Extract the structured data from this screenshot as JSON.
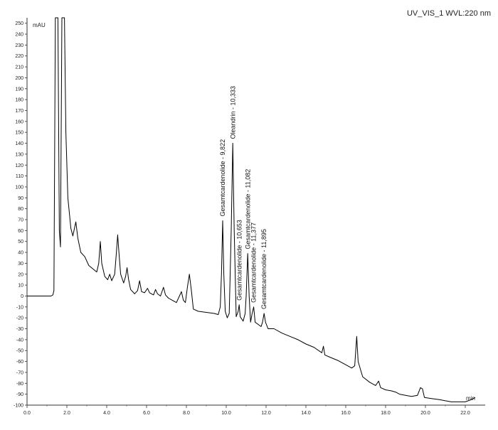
{
  "chart_data": {
    "type": "line",
    "title": "UV_VIS_1 WVL:220 nm",
    "ylabel": "mAU",
    "xlabel": "min",
    "xlim": [
      0,
      23
    ],
    "ylim": [
      -100,
      255
    ],
    "x_ticks": [
      "0.0",
      "2.0",
      "4.0",
      "6.0",
      "8.0",
      "10.0",
      "12.0",
      "14.0",
      "16.0",
      "18.0",
      "20.0",
      "22.0"
    ],
    "x_tick_values": [
      0,
      2,
      4,
      6,
      8,
      10,
      12,
      14,
      16,
      18,
      20,
      22
    ],
    "y_ticks": [
      250,
      240,
      230,
      220,
      210,
      200,
      190,
      180,
      170,
      160,
      150,
      140,
      130,
      120,
      110,
      100,
      90,
      80,
      70,
      60,
      50,
      40,
      30,
      20,
      10,
      0,
      -10,
      -20,
      -30,
      -40,
      -50,
      -60,
      -70,
      -80,
      -90,
      -100
    ],
    "series": [
      {
        "points": [
          [
            0.0,
            0
          ],
          [
            1.2,
            0
          ],
          [
            1.3,
            1
          ],
          [
            1.35,
            5
          ],
          [
            1.42,
            255
          ],
          [
            1.55,
            255
          ],
          [
            1.62,
            60
          ],
          [
            1.68,
            45
          ],
          [
            1.75,
            255
          ],
          [
            1.88,
            255
          ],
          [
            1.95,
            150
          ],
          [
            2.05,
            90
          ],
          [
            2.2,
            62
          ],
          [
            2.3,
            55
          ],
          [
            2.45,
            68
          ],
          [
            2.55,
            53
          ],
          [
            2.7,
            40
          ],
          [
            2.9,
            36
          ],
          [
            3.1,
            28
          ],
          [
            3.3,
            25
          ],
          [
            3.5,
            22
          ],
          [
            3.6,
            30
          ],
          [
            3.68,
            50
          ],
          [
            3.75,
            30
          ],
          [
            3.9,
            18
          ],
          [
            4.05,
            15
          ],
          [
            4.15,
            20
          ],
          [
            4.25,
            14
          ],
          [
            4.4,
            20
          ],
          [
            4.48,
            38
          ],
          [
            4.55,
            56
          ],
          [
            4.62,
            38
          ],
          [
            4.7,
            20
          ],
          [
            4.85,
            12
          ],
          [
            4.95,
            18
          ],
          [
            5.02,
            26
          ],
          [
            5.1,
            15
          ],
          [
            5.2,
            6
          ],
          [
            5.4,
            2
          ],
          [
            5.55,
            5
          ],
          [
            5.65,
            14
          ],
          [
            5.75,
            4
          ],
          [
            5.9,
            3
          ],
          [
            6.05,
            7
          ],
          [
            6.15,
            3
          ],
          [
            6.35,
            1
          ],
          [
            6.45,
            6
          ],
          [
            6.55,
            2
          ],
          [
            6.7,
            0
          ],
          [
            6.85,
            8
          ],
          [
            6.95,
            1
          ],
          [
            7.1,
            -2
          ],
          [
            7.3,
            -4
          ],
          [
            7.5,
            -6
          ],
          [
            7.65,
            0
          ],
          [
            7.75,
            4
          ],
          [
            7.85,
            -4
          ],
          [
            7.95,
            -6
          ],
          [
            8.05,
            8
          ],
          [
            8.15,
            20
          ],
          [
            8.25,
            5
          ],
          [
            8.35,
            -12
          ],
          [
            8.6,
            -14
          ],
          [
            9.0,
            -15
          ],
          [
            9.4,
            -16
          ],
          [
            9.6,
            -17
          ],
          [
            9.7,
            -10
          ],
          [
            9.76,
            20
          ],
          [
            9.82,
            69
          ],
          [
            9.88,
            20
          ],
          [
            9.95,
            -14
          ],
          [
            10.05,
            -20
          ],
          [
            10.15,
            -16
          ],
          [
            10.25,
            60
          ],
          [
            10.33,
            140
          ],
          [
            10.4,
            60
          ],
          [
            10.5,
            -19
          ],
          [
            10.6,
            -14
          ],
          [
            10.65,
            -8
          ],
          [
            10.7,
            -19
          ],
          [
            10.85,
            -23
          ],
          [
            10.95,
            -16
          ],
          [
            11.0,
            0
          ],
          [
            11.08,
            39
          ],
          [
            11.15,
            0
          ],
          [
            11.22,
            -24
          ],
          [
            11.3,
            -16
          ],
          [
            11.38,
            -10
          ],
          [
            11.45,
            -24
          ],
          [
            11.6,
            -26
          ],
          [
            11.75,
            -28
          ],
          [
            11.82,
            -24
          ],
          [
            11.9,
            -16
          ],
          [
            11.97,
            -24
          ],
          [
            12.1,
            -30
          ],
          [
            12.4,
            -30
          ],
          [
            12.8,
            -34
          ],
          [
            13.2,
            -37
          ],
          [
            13.6,
            -40
          ],
          [
            14.0,
            -44
          ],
          [
            14.4,
            -47
          ],
          [
            14.8,
            -52
          ],
          [
            14.88,
            -46
          ],
          [
            14.95,
            -54
          ],
          [
            15.2,
            -56
          ],
          [
            15.6,
            -59
          ],
          [
            16.0,
            -63
          ],
          [
            16.3,
            -66
          ],
          [
            16.45,
            -64
          ],
          [
            16.55,
            -37
          ],
          [
            16.62,
            -60
          ],
          [
            16.75,
            -68
          ],
          [
            16.85,
            -74
          ],
          [
            17.2,
            -79
          ],
          [
            17.5,
            -82
          ],
          [
            17.65,
            -78
          ],
          [
            17.75,
            -84
          ],
          [
            18.0,
            -86
          ],
          [
            18.3,
            -87
          ],
          [
            18.5,
            -88
          ],
          [
            18.7,
            -90
          ],
          [
            19.0,
            -91
          ],
          [
            19.3,
            -92
          ],
          [
            19.6,
            -91
          ],
          [
            19.75,
            -84
          ],
          [
            19.85,
            -85
          ],
          [
            19.95,
            -93
          ],
          [
            20.3,
            -94
          ],
          [
            20.7,
            -95
          ],
          [
            21.0,
            -96
          ],
          [
            21.3,
            -97
          ],
          [
            21.6,
            -97
          ],
          [
            22.0,
            -97
          ],
          [
            22.3,
            -95
          ],
          [
            22.5,
            -93
          ]
        ]
      }
    ],
    "peaks": [
      {
        "rt": 9.822,
        "value": 69,
        "label": "Gesamtcardenolide - 9,822"
      },
      {
        "rt": 10.333,
        "value": 140,
        "label": "Oleandrin - 10,333"
      },
      {
        "rt": 10.653,
        "value": -8,
        "label": "Gesamtcardenolide - 10,653"
      },
      {
        "rt": 11.082,
        "value": 39,
        "label": "Gesamtcardenolide - 11,082"
      },
      {
        "rt": 11.377,
        "value": -10,
        "label": "Gesamtcardenolide - 11,377"
      },
      {
        "rt": 11.895,
        "value": -16,
        "label": "Gesamtcardenolide - 11,895"
      }
    ],
    "grid": false,
    "legend": "none",
    "line_color": "#000000"
  }
}
